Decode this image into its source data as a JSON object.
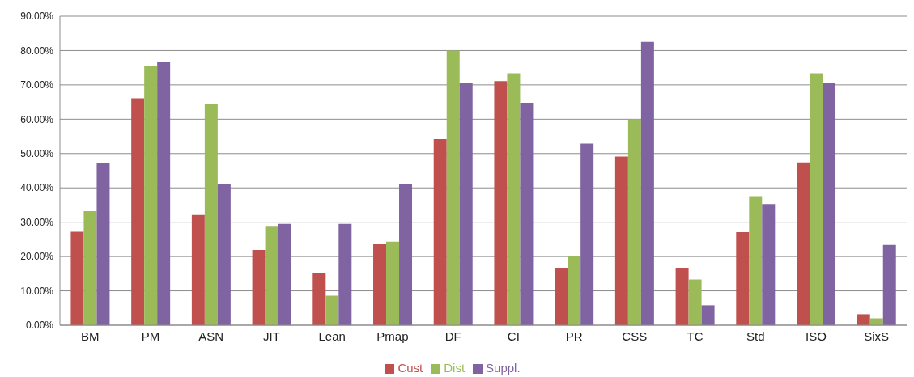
{
  "chart_data": {
    "type": "bar",
    "categories": [
      "BM",
      "PM",
      "ASN",
      "JIT",
      "Lean",
      "Pmap",
      "DF",
      "CI",
      "PR",
      "CSS",
      "TC",
      "Std",
      "ISO",
      "SixS"
    ],
    "series": [
      {
        "name": "Cust",
        "color": "#c0504d",
        "values": [
          27.2,
          66.1,
          32.1,
          21.9,
          15.1,
          23.7,
          54.2,
          71.1,
          16.7,
          49.1,
          16.7,
          27.1,
          47.4,
          3.2
        ]
      },
      {
        "name": "Dist",
        "color": "#9bbb59",
        "values": [
          33.2,
          75.5,
          64.5,
          28.9,
          8.6,
          24.3,
          80,
          73.4,
          20,
          59.9,
          13.3,
          37.6,
          73.4,
          2.0
        ]
      },
      {
        "name": "Suppl.",
        "color": "#8064a2",
        "values": [
          47.2,
          76.6,
          41,
          29.5,
          29.5,
          41,
          70.5,
          64.8,
          52.9,
          82.5,
          5.8,
          35.3,
          70.5,
          23.4
        ]
      }
    ],
    "ylim": [
      0,
      90
    ],
    "yticks": [
      {
        "value": 0,
        "label": "0.00%"
      },
      {
        "value": 10,
        "label": "10.00%"
      },
      {
        "value": 20,
        "label": "20.00%"
      },
      {
        "value": 30,
        "label": "30.00%"
      },
      {
        "value": 40,
        "label": "40.00%"
      },
      {
        "value": 50,
        "label": "50.00%"
      },
      {
        "value": 60,
        "label": "60.00%"
      },
      {
        "value": 70,
        "label": "70.00%"
      },
      {
        "value": 80,
        "label": "80.00%"
      },
      {
        "value": 90,
        "label": "90.00%"
      }
    ],
    "grid": "y",
    "legend": "bottom"
  }
}
